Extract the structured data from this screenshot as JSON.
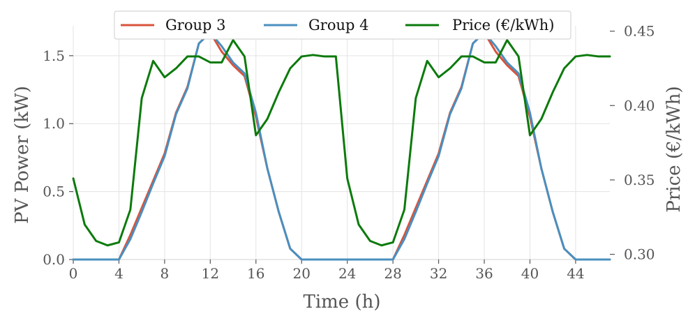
{
  "chart_data": {
    "type": "line",
    "xlabel": "Time (h)",
    "ylabel_left": "PV Power (kW)",
    "ylabel_right": "Price (€/kWh)",
    "xlim": [
      0,
      47
    ],
    "ylim_left": [
      0,
      1.72
    ],
    "ylim_right": [
      0.2965,
      0.4536
    ],
    "x_ticks": [
      0,
      4,
      8,
      12,
      16,
      20,
      24,
      28,
      32,
      36,
      40,
      44
    ],
    "x_tick_labels": [
      "0",
      "4",
      "8",
      "12",
      "16",
      "20",
      "24",
      "28",
      "32",
      "36",
      "40",
      "44"
    ],
    "y_left_ticks": [
      0,
      0.5,
      1.0,
      1.5
    ],
    "y_left_tick_labels": [
      "0.0",
      "0.5",
      "1.0",
      "1.5"
    ],
    "y_right_ticks": [
      0.3,
      0.35,
      0.4,
      0.45
    ],
    "y_right_tick_labels": [
      "0.30",
      "0.35",
      "0.40",
      "0.45"
    ],
    "grid": true,
    "legend_position": "top-center",
    "x": [
      0,
      1,
      2,
      3,
      4,
      5,
      6,
      7,
      8,
      9,
      10,
      11,
      12,
      13,
      14,
      15,
      16,
      17,
      18,
      19,
      20,
      21,
      22,
      23,
      24,
      25,
      26,
      27,
      28,
      29,
      30,
      31,
      32,
      33,
      34,
      35,
      36,
      37,
      38,
      39,
      40,
      41,
      42,
      43,
      44,
      45,
      46,
      47
    ],
    "series": [
      {
        "name": "Group 3",
        "axis": "left",
        "color": "#d9533b",
        "values": [
          0,
          0,
          0,
          0,
          0,
          0.18,
          0.38,
          0.58,
          0.78,
          1.08,
          1.27,
          1.59,
          1.67,
          1.53,
          1.43,
          1.35,
          1.05,
          0.67,
          0.35,
          0.08,
          0,
          0,
          0,
          0,
          0,
          0,
          0,
          0,
          0,
          0.18,
          0.38,
          0.58,
          0.78,
          1.08,
          1.27,
          1.59,
          1.67,
          1.53,
          1.43,
          1.35,
          1.05,
          0.67,
          0.35,
          0.08,
          0,
          0,
          0,
          0
        ]
      },
      {
        "name": "Group 4",
        "axis": "left",
        "color": "#4a8fbf",
        "values": [
          0,
          0,
          0,
          0,
          0,
          0.15,
          0.35,
          0.56,
          0.76,
          1.07,
          1.26,
          1.59,
          1.67,
          1.57,
          1.45,
          1.37,
          1.08,
          0.67,
          0.35,
          0.08,
          0,
          0,
          0,
          0,
          0,
          0,
          0,
          0,
          0,
          0.15,
          0.35,
          0.56,
          0.76,
          1.07,
          1.26,
          1.59,
          1.67,
          1.57,
          1.45,
          1.37,
          1.08,
          0.67,
          0.35,
          0.08,
          0,
          0,
          0,
          0
        ]
      },
      {
        "name": "Price (€/kWh)",
        "axis": "right",
        "color": "#0b7a0b",
        "values": [
          0.351,
          0.32,
          0.309,
          0.306,
          0.308,
          0.33,
          0.405,
          0.43,
          0.419,
          0.425,
          0.433,
          0.433,
          0.429,
          0.429,
          0.444,
          0.433,
          0.38,
          0.391,
          0.409,
          0.425,
          0.433,
          0.434,
          0.433,
          0.433,
          0.351,
          0.32,
          0.309,
          0.306,
          0.308,
          0.33,
          0.405,
          0.43,
          0.419,
          0.425,
          0.433,
          0.433,
          0.429,
          0.429,
          0.444,
          0.433,
          0.38,
          0.391,
          0.409,
          0.425,
          0.433,
          0.434,
          0.433,
          0.433
        ]
      }
    ]
  }
}
